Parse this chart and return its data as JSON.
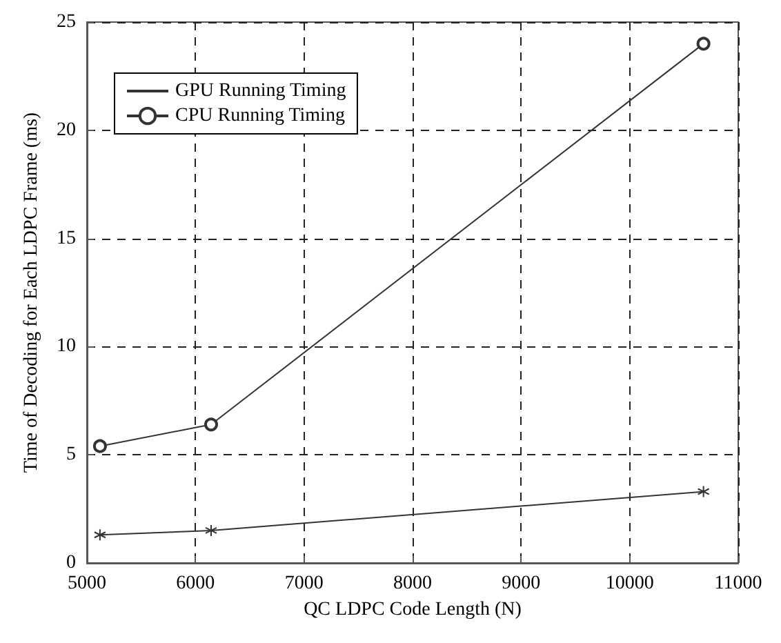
{
  "chart_data": {
    "type": "line",
    "xlabel": "QC LDPC Code Length (N)",
    "ylabel": "Time of Decoding for Each LDPC Frame (ms)",
    "x": [
      5120,
      6144,
      10680
    ],
    "series": [
      {
        "name": "GPU Running Timing",
        "color": "#333333",
        "marker": "cross",
        "values": [
          1.3,
          1.5,
          3.3
        ]
      },
      {
        "name": "CPU Running Timing",
        "color": "#333333",
        "marker": "circle",
        "values": [
          5.4,
          6.4,
          24.0
        ]
      }
    ],
    "xlim": [
      5000,
      11000
    ],
    "xticks": [
      5000,
      6000,
      7000,
      8000,
      9000,
      10000,
      11000
    ],
    "ylim": [
      0,
      25
    ],
    "yticks": [
      0,
      5,
      10,
      15,
      20,
      25
    ],
    "grid": true,
    "legend": "top left",
    "line_style": "solid"
  }
}
